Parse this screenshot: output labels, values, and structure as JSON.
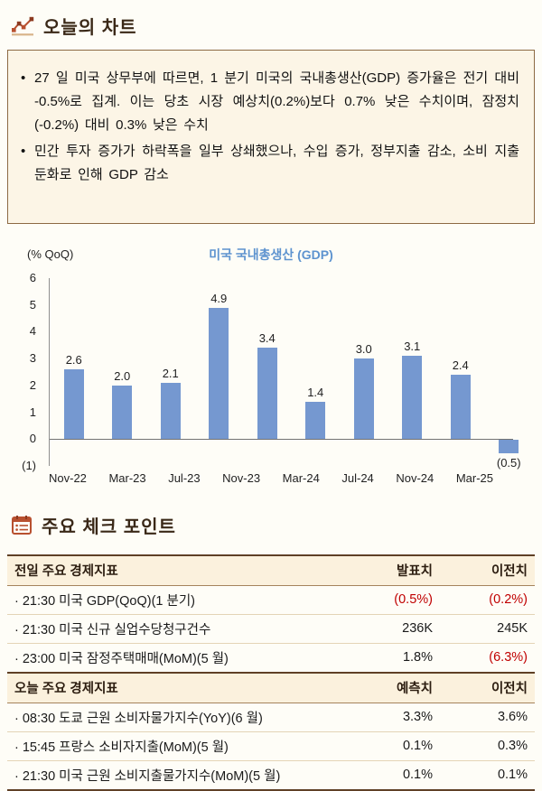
{
  "page": {
    "section1_title": "오늘의 차트",
    "section2_title": "주요 체크 포인트"
  },
  "summary": {
    "bullets": [
      "27 일 미국 상무부에 따르면, 1 분기 미국의 국내총생산(GDP) 증가율은 전기 대비 -0.5%로 집계. 이는 당초 시장 예상치(0.2%)보다 0.7% 낮은 수치이며, 잠정치(-0.2%) 대비 0.3% 낮은 수치",
      "민간 투자 증가가 하락폭을 일부 상쇄했으나, 수입 증가, 정부지출 감소, 소비 지출 둔화로 인해 GDP 감소"
    ]
  },
  "chart_data": {
    "type": "bar",
    "title": "미국 국내총생산 (GDP)",
    "unit_label": "(% QoQ)",
    "x_tick_labels": [
      "Nov-22",
      "Mar-23",
      "Jul-23",
      "Nov-23",
      "Mar-24",
      "Jul-24",
      "Nov-24",
      "Mar-25"
    ],
    "values": [
      2.6,
      2.0,
      2.1,
      4.9,
      3.4,
      1.4,
      3.0,
      3.1,
      2.4,
      -0.5
    ],
    "value_labels": [
      "2.6",
      "2.0",
      "2.1",
      "4.9",
      "3.4",
      "1.4",
      "3.0",
      "3.1",
      "2.4",
      "(0.5)"
    ],
    "ylim": [
      -1,
      6
    ],
    "y_ticks": [
      {
        "label": "6",
        "v": 6
      },
      {
        "label": "5",
        "v": 5
      },
      {
        "label": "4",
        "v": 4
      },
      {
        "label": "3",
        "v": 3
      },
      {
        "label": "2",
        "v": 2
      },
      {
        "label": "1",
        "v": 1
      },
      {
        "label": "0",
        "v": 0
      },
      {
        "label": "(1)",
        "v": -1
      }
    ],
    "grid": false,
    "legend": "none"
  },
  "checkpoints": {
    "sections": [
      {
        "header": {
          "label": "전일 주요 경제지표",
          "col1": "발표치",
          "col2": "이전치"
        },
        "rows": [
          {
            "name": "· 21:30 미국 GDP(QoQ)(1 분기)",
            "v1": "(0.5%)",
            "v2": "(0.2%)"
          },
          {
            "name": "· 21:30 미국 신규 실업수당청구건수",
            "v1": "236K",
            "v2": "245K"
          },
          {
            "name": "· 23:00 미국 잠정주택매매(MoM)(5 월)",
            "v1": "1.8%",
            "v2": "(6.3%)"
          }
        ]
      },
      {
        "header": {
          "label": "오늘 주요 경제지표",
          "col1": "예측치",
          "col2": "이전치"
        },
        "rows": [
          {
            "name": "· 08:30 도쿄 근원 소비자물가지수(YoY)(6 월)",
            "v1": "3.3%",
            "v2": "3.6%"
          },
          {
            "name": "· 15:45 프랑스 소비자지출(MoM)(5 월)",
            "v1": "0.1%",
            "v2": "0.3%"
          },
          {
            "name": "· 21:30 미국 근원 소비지출물가지수(MoM)(5 월)",
            "v1": "0.1%",
            "v2": "0.1%"
          }
        ]
      }
    ]
  },
  "colors": {
    "accent_brown": "#5f4026",
    "line_mid": "#a5835c",
    "line_light": "#e4d4b6",
    "negative_red": "#c00000",
    "bar_blue": "#7598d0",
    "chart_title_blue": "#5d93cf",
    "box_bg": "#fcf5e6",
    "box_border": "#8d6a43",
    "header_bg": "#fbf1dd",
    "title_color": "#3a2817",
    "icon_rust": "#b8502f"
  }
}
